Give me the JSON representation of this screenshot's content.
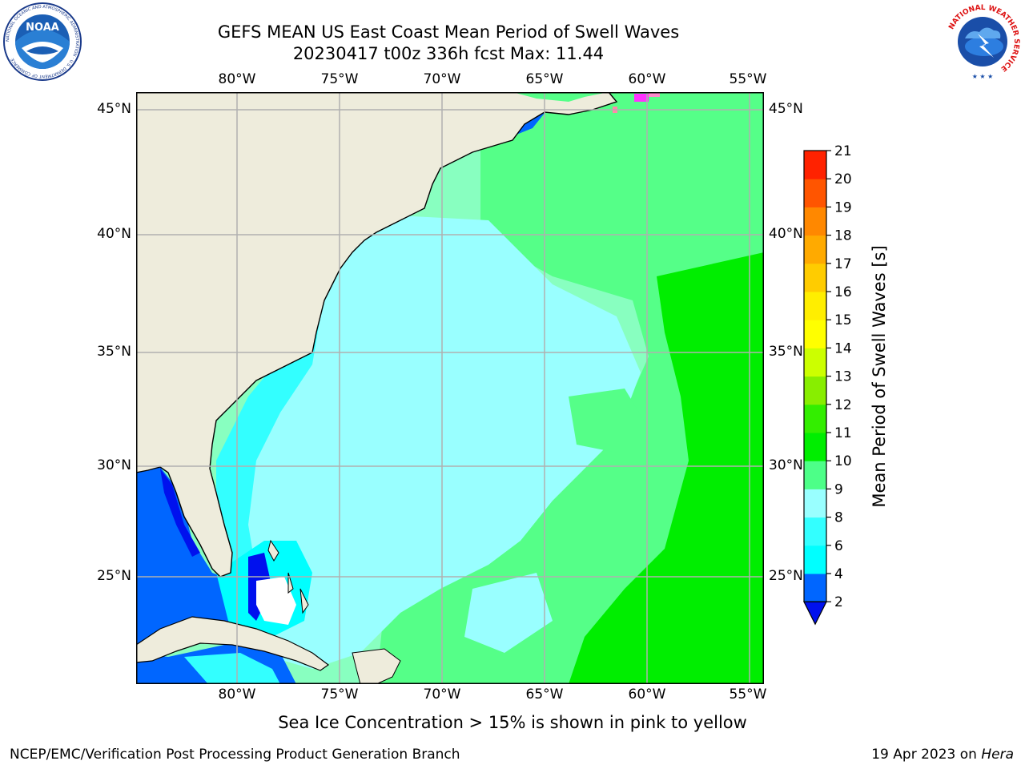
{
  "title": {
    "line1": "GEFS MEAN US East Coast Mean Period of Swell Waves",
    "line2": "20230417 t00z 336h fcst   Max: 11.44"
  },
  "map": {
    "lon_labels": [
      "80°W",
      "75°W",
      "70°W",
      "65°W",
      "60°W",
      "55°W"
    ],
    "lat_labels": [
      "45°N",
      "40°N",
      "35°N",
      "30°N",
      "25°N"
    ],
    "land_color": "#eeecdc",
    "grid_color": "#b0b0b0"
  },
  "colorbar": {
    "label": "Mean Period of Swell Waves [s]",
    "ticks": [
      "2",
      "4",
      "6",
      "8",
      "9",
      "10",
      "11",
      "12",
      "13",
      "14",
      "15",
      "16",
      "17",
      "18",
      "19",
      "20",
      "21"
    ],
    "colors": [
      "#0066ff",
      "#00ffff",
      "#33ffff",
      "#99ffff",
      "#4dff88",
      "#00ee00",
      "#33ee00",
      "#88ee00",
      "#ccff00",
      "#ffff00",
      "#ffee00",
      "#ffcc00",
      "#ffaa00",
      "#ff8800",
      "#ff5500",
      "#ff2200"
    ],
    "extend_color": "#0011ee"
  },
  "note": "Sea Ice Concentration > 15% is shown in pink to yellow",
  "footer": {
    "left": "NCEP/EMC/Verification Post Processing Product Generation Branch",
    "right_prefix": "19 Apr 2023 on ",
    "right_host": "Hera"
  },
  "logos": {
    "noaa_text": "NOAA",
    "noaa_ring": "NATIONAL OCEANIC AND ATMOSPHERIC ADMINISTRATION · U.S. DEPARTMENT OF COMMERCE",
    "nws_ring": "NATIONAL WEATHER SERVICE"
  }
}
